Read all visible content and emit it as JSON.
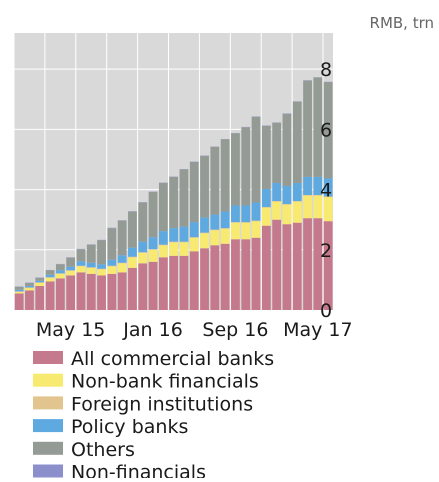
{
  "chart_data": {
    "type": "bar",
    "stacked": true,
    "title": "",
    "unit_label": "RMB, trn",
    "xlabel": "",
    "ylabel": "",
    "ylim": [
      0,
      9.2
    ],
    "y_ticks": [
      0,
      2,
      4,
      6,
      8
    ],
    "y_axis_position": "right",
    "x_tick_labels": [
      {
        "label": "May 15",
        "index": 5
      },
      {
        "label": "Jan 16",
        "index": 13
      },
      {
        "label": "Sep 16",
        "index": 21
      },
      {
        "label": "May 17",
        "index": 29
      }
    ],
    "grid": true,
    "legend_position": "bottom",
    "categories": [
      "Dec 14",
      "Jan 15",
      "Feb 15",
      "Mar 15",
      "Apr 15",
      "May 15",
      "Jun 15",
      "Jul 15",
      "Aug 15",
      "Sep 15",
      "Oct 15",
      "Nov 15",
      "Dec 15",
      "Jan 16",
      "Feb 16",
      "Mar 16",
      "Apr 16",
      "May 16",
      "Jun 16",
      "Jul 16",
      "Aug 16",
      "Sep 16",
      "Oct 16",
      "Nov 16",
      "Dec 16",
      "Jan 17",
      "Feb 17",
      "Mar 17",
      "Apr 17",
      "May 17",
      "Jun 17"
    ],
    "series": [
      {
        "name": "All commercial banks",
        "color": "#c47a8c",
        "values": [
          0.55,
          0.65,
          0.8,
          0.95,
          1.05,
          1.15,
          1.25,
          1.2,
          1.15,
          1.2,
          1.25,
          1.4,
          1.55,
          1.6,
          1.75,
          1.8,
          1.8,
          1.95,
          2.05,
          2.15,
          2.2,
          2.35,
          2.35,
          2.4,
          2.8,
          3.0,
          2.85,
          2.9,
          3.05,
          3.05,
          2.95
        ]
      },
      {
        "name": "Non-bank financials",
        "color": "#f8ea70",
        "values": [
          0.05,
          0.08,
          0.1,
          0.12,
          0.15,
          0.15,
          0.2,
          0.2,
          0.2,
          0.25,
          0.3,
          0.35,
          0.35,
          0.4,
          0.4,
          0.45,
          0.45,
          0.45,
          0.5,
          0.5,
          0.5,
          0.55,
          0.55,
          0.55,
          0.6,
          0.6,
          0.65,
          0.7,
          0.75,
          0.75,
          0.8
        ]
      },
      {
        "name": "Foreign institutions",
        "color": "#e2c58e",
        "values": [
          0.02,
          0.02,
          0.02,
          0.02,
          0.02,
          0.02,
          0.02,
          0.02,
          0.02,
          0.02,
          0.02,
          0.02,
          0.02,
          0.02,
          0.02,
          0.02,
          0.02,
          0.02,
          0.02,
          0.02,
          0.02,
          0.02,
          0.02,
          0.02,
          0.02,
          0.02,
          0.02,
          0.02,
          0.02,
          0.02,
          0.02
        ]
      },
      {
        "name": "Policy banks",
        "color": "#5ea9df",
        "values": [
          0.05,
          0.05,
          0.05,
          0.08,
          0.1,
          0.12,
          0.15,
          0.15,
          0.15,
          0.2,
          0.25,
          0.3,
          0.35,
          0.4,
          0.45,
          0.45,
          0.5,
          0.5,
          0.5,
          0.5,
          0.55,
          0.55,
          0.55,
          0.6,
          0.6,
          0.6,
          0.6,
          0.6,
          0.6,
          0.6,
          0.6
        ]
      },
      {
        "name": "Others",
        "color": "#949a94",
        "values": [
          0.1,
          0.1,
          0.1,
          0.15,
          0.2,
          0.3,
          0.4,
          0.6,
          0.8,
          1.05,
          1.15,
          1.2,
          1.3,
          1.5,
          1.6,
          1.7,
          1.9,
          2.0,
          2.05,
          2.25,
          2.4,
          2.4,
          2.6,
          2.85,
          2.1,
          2.0,
          2.4,
          2.7,
          3.2,
          3.3,
          3.2
        ]
      },
      {
        "name": "Non-financials",
        "color": "#8b90cc",
        "values": [
          0.01,
          0.01,
          0.01,
          0.01,
          0.01,
          0.01,
          0.01,
          0.01,
          0.01,
          0.01,
          0.01,
          0.01,
          0.01,
          0.01,
          0.01,
          0.01,
          0.01,
          0.01,
          0.01,
          0.01,
          0.01,
          0.01,
          0.01,
          0.01,
          0.01,
          0.01,
          0.01,
          0.01,
          0.01,
          0.01,
          0.01
        ]
      }
    ]
  },
  "colors": {
    "plot_background": "#d9d9d9",
    "gridline": "#ffffff"
  }
}
